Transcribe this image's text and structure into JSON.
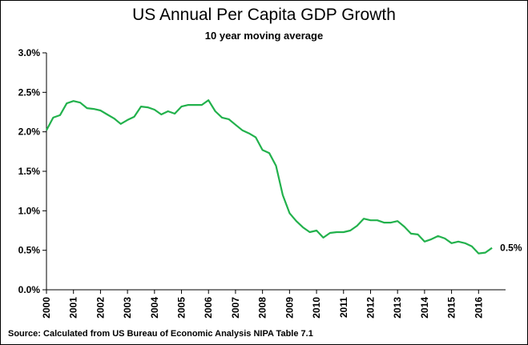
{
  "chart_data": {
    "type": "line",
    "title": "US Annual Per Capita GDP Growth",
    "subtitle": "10 year moving average",
    "xlabel": "",
    "ylabel": "",
    "source": "Source: Calculated from US Bureau of Economic Analysis NIPA Table 7.1",
    "ylim": [
      0,
      3.0
    ],
    "y_ticks": [
      "0.0%",
      "0.5%",
      "1.0%",
      "1.5%",
      "2.0%",
      "2.5%",
      "3.0%"
    ],
    "y_tick_values": [
      0,
      0.5,
      1.0,
      1.5,
      2.0,
      2.5,
      3.0
    ],
    "x_ticks": [
      "2000",
      "2001",
      "2002",
      "2003",
      "2004",
      "2005",
      "2006",
      "2007",
      "2008",
      "2009",
      "2010",
      "2011",
      "2012",
      "2013",
      "2014",
      "2015",
      "2016"
    ],
    "grid": false,
    "line_color": "#22b14c",
    "end_label": "0.5%",
    "series": [
      {
        "x": [
          2000.0,
          2000.25,
          2000.5,
          2000.75,
          2001.0,
          2001.25,
          2001.5,
          2001.75,
          2002.0,
          2002.25,
          2002.5,
          2002.75,
          2003.0,
          2003.25,
          2003.5,
          2003.75,
          2004.0,
          2004.25,
          2004.5,
          2004.75,
          2005.0,
          2005.25,
          2005.5,
          2005.75,
          2006.0,
          2006.25,
          2006.5,
          2006.75,
          2007.0,
          2007.25,
          2007.5,
          2007.75,
          2008.0,
          2008.25,
          2008.5,
          2008.75,
          2009.0,
          2009.25,
          2009.5,
          2009.75,
          2010.0,
          2010.25,
          2010.5,
          2010.75,
          2011.0,
          2011.25,
          2011.5,
          2011.75,
          2012.0,
          2012.25,
          2012.5,
          2012.75,
          2013.0,
          2013.25,
          2013.5,
          2013.75,
          2014.0,
          2014.25,
          2014.5,
          2014.75,
          2015.0,
          2015.25,
          2015.5,
          2015.75,
          2016.0,
          2016.25,
          2016.5
        ],
        "values": [
          2.02,
          2.18,
          2.21,
          2.36,
          2.39,
          2.37,
          2.3,
          2.29,
          2.27,
          2.22,
          2.17,
          2.1,
          2.15,
          2.19,
          2.32,
          2.31,
          2.28,
          2.22,
          2.26,
          2.23,
          2.32,
          2.34,
          2.34,
          2.34,
          2.4,
          2.26,
          2.18,
          2.16,
          2.09,
          2.02,
          1.98,
          1.93,
          1.77,
          1.73,
          1.57,
          1.2,
          0.97,
          0.87,
          0.79,
          0.73,
          0.75,
          0.66,
          0.72,
          0.73,
          0.73,
          0.75,
          0.81,
          0.9,
          0.88,
          0.88,
          0.85,
          0.85,
          0.87,
          0.8,
          0.71,
          0.7,
          0.61,
          0.64,
          0.68,
          0.65,
          0.59,
          0.61,
          0.59,
          0.55,
          0.46,
          0.47,
          0.53
        ]
      }
    ]
  }
}
